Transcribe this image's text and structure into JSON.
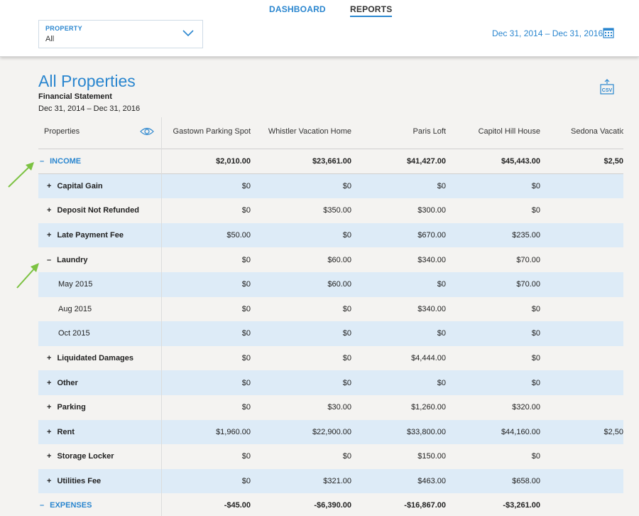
{
  "nav": {
    "dashboard": "DASHBOARD",
    "reports": "REPORTS"
  },
  "filter": {
    "label": "PROPERTY",
    "value": "All",
    "date_range": "Dec 31, 2014 – Dec 31, 2016"
  },
  "report": {
    "title": "All Properties",
    "subtitle": "Financial Statement",
    "date_range": "Dec 31, 2014 – Dec 31, 2016",
    "csv_label": "CSV"
  },
  "colors": {
    "accent": "#2a86cf",
    "row_highlight": "#ddebf7",
    "arrow": "#7cc242"
  },
  "table": {
    "first_col": "Properties",
    "columns": [
      "Gastown Parking Spot",
      "Whistler Vacation Home",
      "Paris Loft",
      "Capitol Hill House",
      "Sedona Vacation R"
    ],
    "rows": [
      {
        "label": "INCOME",
        "toggle": "–",
        "kind": "section",
        "values": [
          "$2,010.00",
          "$23,661.00",
          "$41,427.00",
          "$45,443.00",
          "$2,50"
        ]
      },
      {
        "label": "Capital Gain",
        "toggle": "+",
        "kind": "group",
        "values": [
          "$0",
          "$0",
          "$0",
          "$0",
          ""
        ]
      },
      {
        "label": "Deposit Not Refunded",
        "toggle": "+",
        "kind": "group",
        "values": [
          "$0",
          "$350.00",
          "$300.00",
          "$0",
          ""
        ]
      },
      {
        "label": "Late Payment Fee",
        "toggle": "+",
        "kind": "group",
        "values": [
          "$50.00",
          "$0",
          "$670.00",
          "$235.00",
          ""
        ]
      },
      {
        "label": "Laundry",
        "toggle": "–",
        "kind": "group",
        "values": [
          "$0",
          "$60.00",
          "$340.00",
          "$70.00",
          ""
        ]
      },
      {
        "label": "May 2015",
        "toggle": "",
        "kind": "item",
        "values": [
          "$0",
          "$60.00",
          "$0",
          "$70.00",
          ""
        ]
      },
      {
        "label": "Aug 2015",
        "toggle": "",
        "kind": "item",
        "values": [
          "$0",
          "$0",
          "$340.00",
          "$0",
          ""
        ]
      },
      {
        "label": "Oct 2015",
        "toggle": "",
        "kind": "item",
        "values": [
          "$0",
          "$0",
          "$0",
          "$0",
          ""
        ]
      },
      {
        "label": "Liquidated Damages",
        "toggle": "+",
        "kind": "group",
        "values": [
          "$0",
          "$0",
          "$4,444.00",
          "$0",
          ""
        ]
      },
      {
        "label": "Other",
        "toggle": "+",
        "kind": "group",
        "values": [
          "$0",
          "$0",
          "$0",
          "$0",
          ""
        ]
      },
      {
        "label": "Parking",
        "toggle": "+",
        "kind": "group",
        "values": [
          "$0",
          "$30.00",
          "$1,260.00",
          "$320.00",
          ""
        ]
      },
      {
        "label": "Rent",
        "toggle": "+",
        "kind": "group",
        "values": [
          "$1,960.00",
          "$22,900.00",
          "$33,800.00",
          "$44,160.00",
          "$2,50"
        ]
      },
      {
        "label": "Storage Locker",
        "toggle": "+",
        "kind": "group",
        "values": [
          "$0",
          "$0",
          "$150.00",
          "$0",
          ""
        ]
      },
      {
        "label": "Utilities Fee",
        "toggle": "+",
        "kind": "group",
        "values": [
          "$0",
          "$321.00",
          "$463.00",
          "$658.00",
          ""
        ]
      },
      {
        "label": "EXPENSES",
        "toggle": "–",
        "kind": "section",
        "values": [
          "-$45.00",
          "-$6,390.00",
          "-$16,867.00",
          "-$3,261.00",
          ""
        ]
      }
    ]
  }
}
